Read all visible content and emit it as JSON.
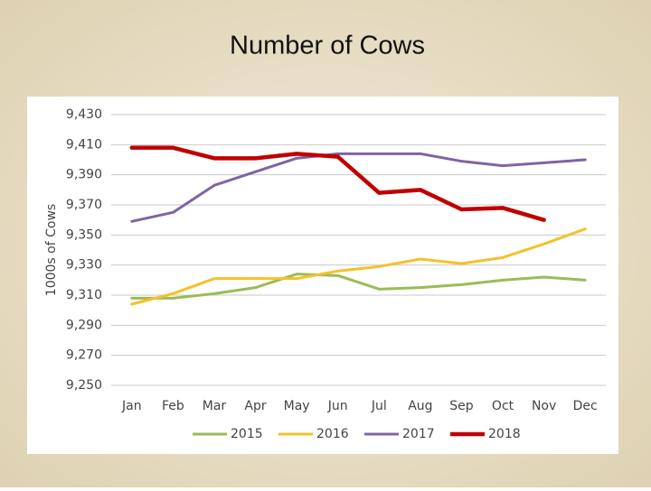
{
  "chart_data": {
    "type": "line",
    "title": "Number of Cows",
    "y_label": "1000s of Cows",
    "categories": [
      "Jan",
      "Feb",
      "Mar",
      "Apr",
      "May",
      "Jun",
      "Jul",
      "Aug",
      "Sep",
      "Oct",
      "Nov",
      "Dec"
    ],
    "series": [
      {
        "name": "2015",
        "color": "#9bbb59",
        "values": [
          9308,
          9308,
          9311,
          9315,
          9324,
          9323,
          9314,
          9315,
          9317,
          9320,
          9322,
          9320
        ]
      },
      {
        "name": "2016",
        "color": "#f5c12a",
        "values": [
          9304,
          9311,
          9321,
          9321,
          9321,
          9326,
          9329,
          9334,
          9331,
          9335,
          9344,
          9354
        ]
      },
      {
        "name": "2017",
        "color": "#8064a2",
        "values": [
          9359,
          9365,
          9383,
          9392,
          9401,
          9404,
          9404,
          9404,
          9399,
          9396,
          9398,
          9400
        ]
      },
      {
        "name": "2018",
        "color": "#c00000",
        "values": [
          9408,
          9408,
          9401,
          9401,
          9404,
          9402,
          9378,
          9380,
          9367,
          9368,
          9360,
          null
        ]
      }
    ],
    "ylim": [
      9250,
      9430
    ],
    "yticks": [
      {
        "value": 9250,
        "label": "9,250"
      },
      {
        "value": 9270,
        "label": "9,270"
      },
      {
        "value": 9290,
        "label": "9,290"
      },
      {
        "value": 9310,
        "label": "9,310"
      },
      {
        "value": 9330,
        "label": "9,330"
      },
      {
        "value": 9350,
        "label": "9,350"
      },
      {
        "value": 9370,
        "label": "9,370"
      },
      {
        "value": 9390,
        "label": "9,390"
      },
      {
        "value": 9410,
        "label": "9,410"
      },
      {
        "value": 9430,
        "label": "9,430"
      }
    ],
    "grid": true,
    "legend": "bottom"
  }
}
